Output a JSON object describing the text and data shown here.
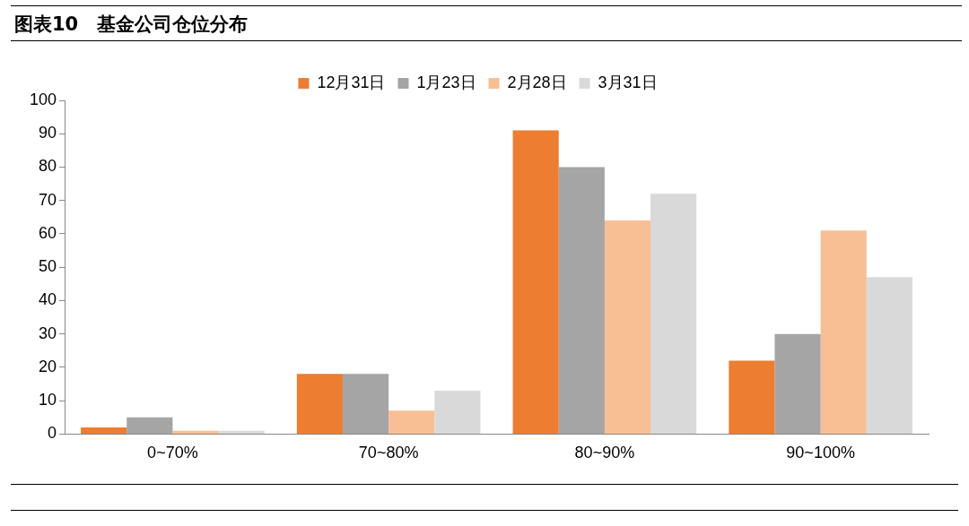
{
  "chart_data": {
    "type": "bar",
    "title": "图表10　基金公司仓位分布",
    "categories": [
      "0~70%",
      "70~80%",
      "80~90%",
      "90~100%"
    ],
    "series": [
      {
        "name": "12月31日",
        "color": "#ed7d31",
        "values": [
          2,
          18,
          91,
          22
        ]
      },
      {
        "name": "1月23日",
        "color": "#a5a5a5",
        "values": [
          5,
          18,
          80,
          30
        ]
      },
      {
        "name": "2月28日",
        "color": "#f8bf95",
        "values": [
          1,
          7,
          64,
          61
        ]
      },
      {
        "name": "3月31日",
        "color": "#d9d9d9",
        "values": [
          1,
          13,
          72,
          47
        ]
      }
    ],
    "ylim": [
      0,
      100
    ],
    "yticks": [
      0,
      10,
      20,
      30,
      40,
      50,
      60,
      70,
      80,
      90,
      100
    ],
    "grid": false,
    "legend": "top"
  }
}
